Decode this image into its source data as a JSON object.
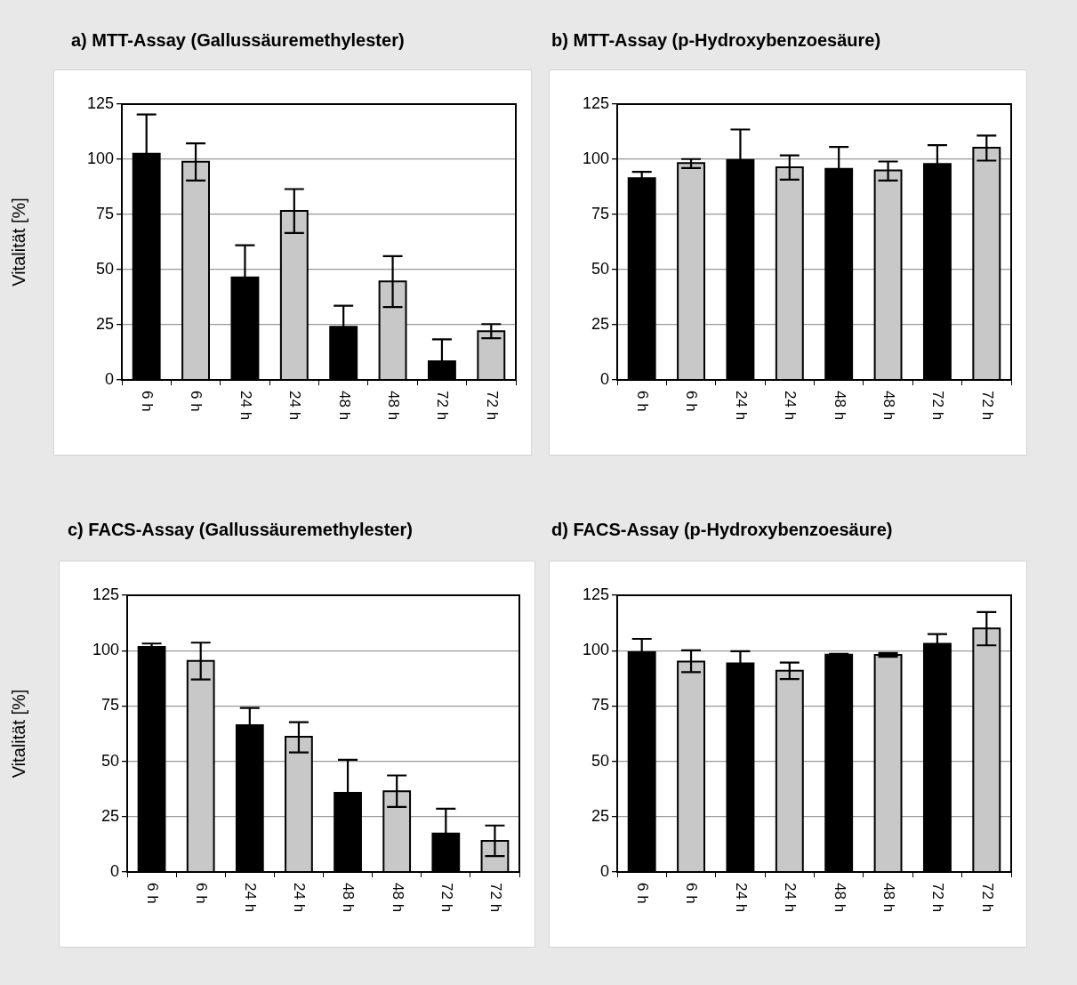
{
  "chart_data": [
    {
      "type": "bar",
      "title": "a) MTT-Assay (Gallussäuremethylester)",
      "ylabel": "Vitalität [%]",
      "categories": [
        "6 h",
        "6 h",
        "24 h",
        "24 h",
        "48 h",
        "48 h",
        "72 h",
        "72 h"
      ],
      "values": [
        102.5,
        98.9,
        46.5,
        76.6,
        24.1,
        44.7,
        8.5,
        22.1
      ],
      "colors": [
        "#000000",
        "#c8c8c8",
        "#000000",
        "#c8c8c8",
        "#000000",
        "#c8c8c8",
        "#000000",
        "#c8c8c8"
      ],
      "errors": [
        [
          102.5,
          120.3
        ],
        [
          90.4,
          107.2
        ],
        [
          46.5,
          61
        ],
        [
          66.6,
          86.5
        ],
        [
          24.1,
          33.6
        ],
        [
          33,
          56.1
        ],
        [
          8.5,
          18.4
        ],
        [
          18.9,
          25.3
        ]
      ],
      "ylim": [
        0,
        125
      ],
      "yticks": [
        0,
        25,
        50,
        75,
        100,
        125
      ],
      "grid": "y"
    },
    {
      "type": "bar",
      "title": "b) MTT-Assay (p-Hydroxybenzoesäure)",
      "categories": [
        "6 h",
        "6 h",
        "24 h",
        "24 h",
        "48 h",
        "48 h",
        "72 h",
        "72 h"
      ],
      "values": [
        91.4,
        98.3,
        99.7,
        96.4,
        95.7,
        95,
        97.9,
        105.2
      ],
      "colors": [
        "#000000",
        "#c8c8c8",
        "#000000",
        "#c8c8c8",
        "#000000",
        "#c8c8c8",
        "#000000",
        "#c8c8c8"
      ],
      "errors": [
        [
          91.4,
          94.3
        ],
        [
          96,
          100.1
        ],
        [
          99.7,
          113.5
        ],
        [
          90.8,
          101.8
        ],
        [
          95.7,
          105.6
        ],
        [
          90.4,
          99
        ],
        [
          97.9,
          106.4
        ],
        [
          99.4,
          110.7
        ]
      ],
      "ylim": [
        0,
        125
      ],
      "yticks": [
        0,
        25,
        50,
        75,
        100,
        125
      ],
      "grid": "y"
    },
    {
      "type": "bar",
      "title": "c) FACS-Assay (Gallussäuremethylester)",
      "ylabel": "Vitalität [%]",
      "categories": [
        "6 h",
        "6 h",
        "24 h",
        "24 h",
        "48 h",
        "48 h",
        "72 h",
        "72 h"
      ],
      "values": [
        101.7,
        95.4,
        66.3,
        61.1,
        35.8,
        36.5,
        17.4,
        14.1
      ],
      "colors": [
        "#000000",
        "#c8c8c8",
        "#000000",
        "#c8c8c8",
        "#000000",
        "#c8c8c8",
        "#000000",
        "#c8c8c8"
      ],
      "errors": [
        [
          101.7,
          103.2
        ],
        [
          87,
          103.6
        ],
        [
          66.3,
          74.1
        ],
        [
          54,
          67.7
        ],
        [
          35.8,
          50.7
        ],
        [
          29.4,
          43.6
        ],
        [
          17.4,
          28.6
        ],
        [
          7.2,
          21
        ]
      ],
      "ylim": [
        0,
        125
      ],
      "yticks": [
        0,
        25,
        50,
        75,
        100,
        125
      ],
      "grid": "y"
    },
    {
      "type": "bar",
      "title": "d) FACS-Assay (p-Hydroxybenzoesäure)",
      "categories": [
        "6 h",
        "6 h",
        "24 h",
        "24 h",
        "48 h",
        "48 h",
        "72 h",
        "72 h"
      ],
      "values": [
        99.3,
        95.1,
        94.3,
        90.9,
        98.2,
        98.1,
        103.1,
        110
      ],
      "colors": [
        "#000000",
        "#c8c8c8",
        "#000000",
        "#c8c8c8",
        "#000000",
        "#c8c8c8",
        "#000000",
        "#c8c8c8"
      ],
      "errors": [
        [
          99.3,
          105.3
        ],
        [
          90.3,
          100.1
        ],
        [
          94.3,
          99.7
        ],
        [
          87.2,
          94.6
        ],
        [
          98.2,
          98.5
        ],
        [
          97.2,
          98.9
        ],
        [
          103.1,
          107.5
        ],
        [
          102.4,
          117.4
        ]
      ],
      "ylim": [
        0,
        125
      ],
      "yticks": [
        0,
        25,
        50,
        75,
        100,
        125
      ],
      "grid": "y"
    }
  ]
}
